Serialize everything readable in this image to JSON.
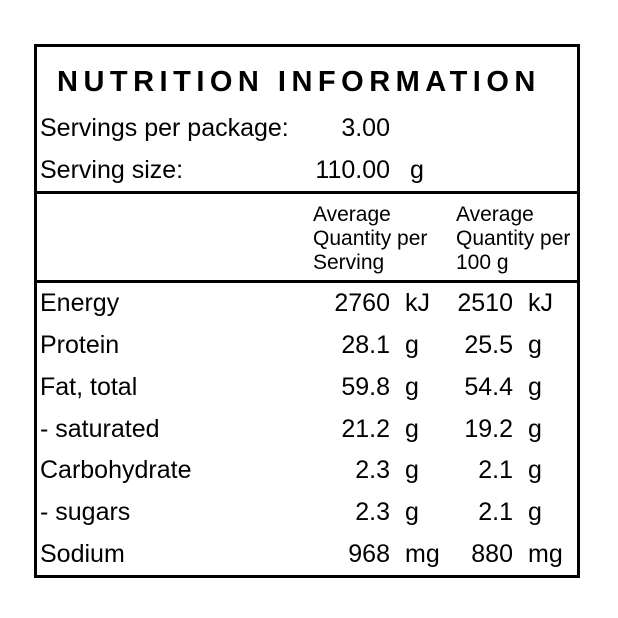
{
  "panel": {
    "title": "NUTRITION INFORMATION",
    "info_rows": [
      {
        "label": "Servings per package:",
        "value": "3.00",
        "unit": ""
      },
      {
        "label": "Serving size:",
        "value": "110.00",
        "unit": "g"
      }
    ],
    "column_headers": {
      "per_serving": "Average\nQuantity per\nServing",
      "per_100g": "Average\nQuantity per\n100 g"
    },
    "nutrients": [
      {
        "label": "Energy",
        "per_serving_value": "2760",
        "per_serving_unit": "kJ",
        "per_100g_value": "2510",
        "per_100g_unit": "kJ"
      },
      {
        "label": "Protein",
        "per_serving_value": "28.1",
        "per_serving_unit": "g",
        "per_100g_value": "25.5",
        "per_100g_unit": "g"
      },
      {
        "label": "Fat, total",
        "per_serving_value": "59.8",
        "per_serving_unit": "g",
        "per_100g_value": "54.4",
        "per_100g_unit": "g"
      },
      {
        "label": "- saturated",
        "per_serving_value": "21.2",
        "per_serving_unit": "g",
        "per_100g_value": "19.2",
        "per_100g_unit": "g"
      },
      {
        "label": "Carbohydrate",
        "per_serving_value": "2.3",
        "per_serving_unit": "g",
        "per_100g_value": "2.1",
        "per_100g_unit": "g"
      },
      {
        "label": "- sugars",
        "per_serving_value": "2.3",
        "per_serving_unit": "g",
        "per_100g_value": "2.1",
        "per_100g_unit": "g"
      },
      {
        "label": "Sodium",
        "per_serving_value": "968",
        "per_serving_unit": "mg",
        "per_100g_value": "880",
        "per_100g_unit": "mg"
      }
    ],
    "colors": {
      "border": "#000000",
      "text": "#000000",
      "background": "#ffffff"
    }
  }
}
